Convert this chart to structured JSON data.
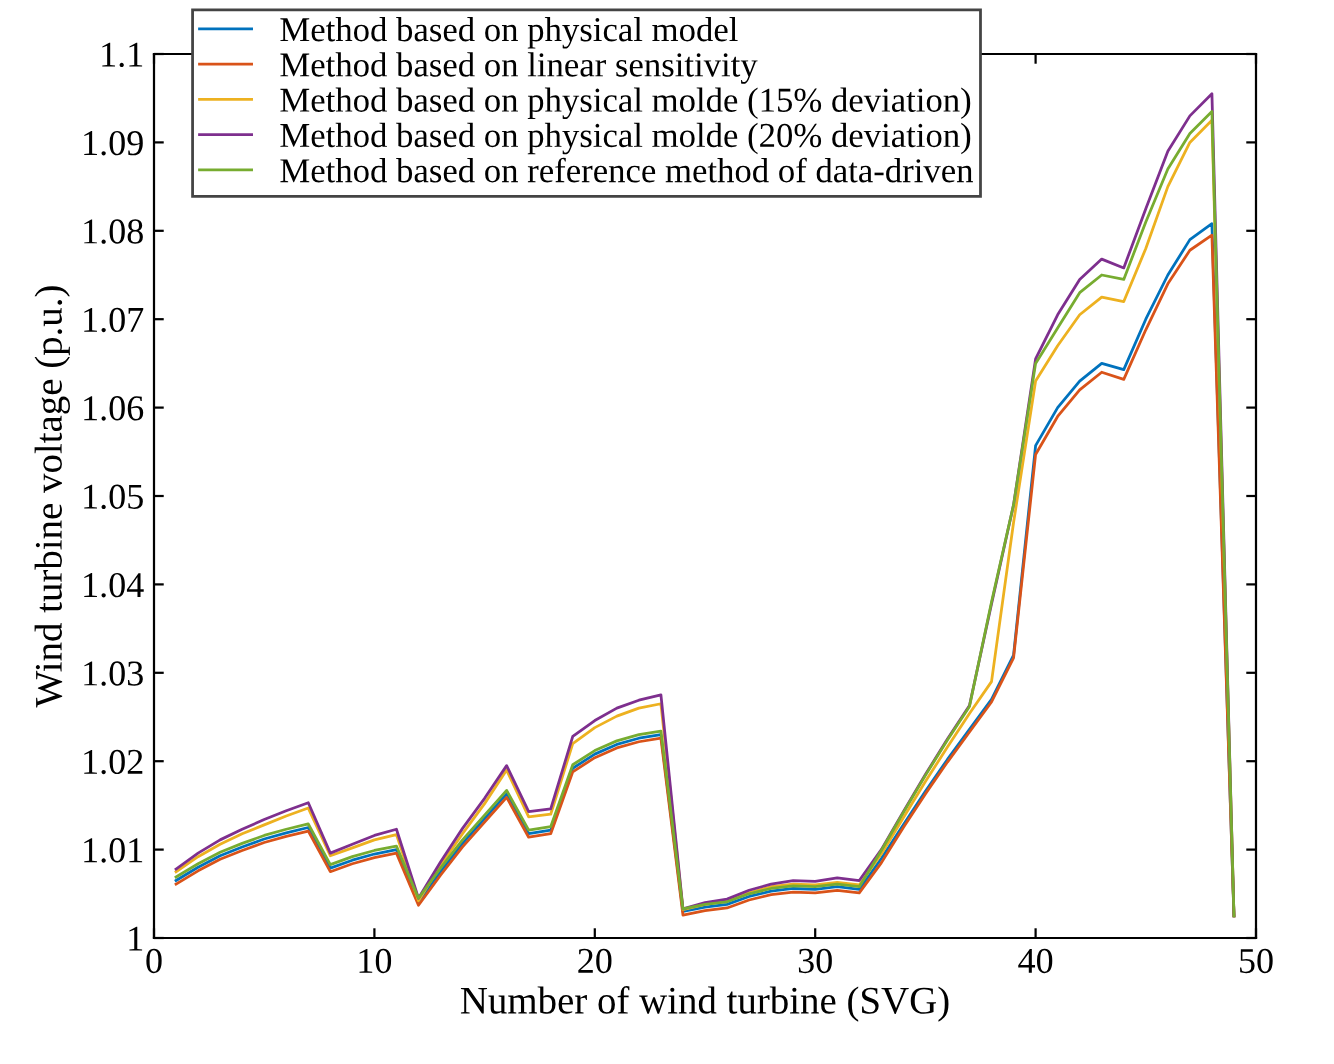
{
  "chart_data": {
    "type": "line",
    "xlabel": "Number of wind turbine (SVG)",
    "ylabel": "Wind turbine voltage (p.u.)",
    "x": [
      1,
      2,
      3,
      4,
      5,
      6,
      7,
      8,
      9,
      10,
      11,
      12,
      13,
      14,
      15,
      16,
      17,
      18,
      19,
      20,
      21,
      22,
      23,
      24,
      25,
      26,
      27,
      28,
      29,
      30,
      31,
      32,
      33,
      34,
      35,
      36,
      37,
      38,
      39,
      40,
      41,
      42,
      43,
      44,
      45,
      46,
      47,
      48,
      49
    ],
    "series": [
      {
        "name": "Method based on physical model",
        "color": "#0072bd",
        "values": [
          1.0065,
          1.008,
          1.0093,
          1.0103,
          1.0112,
          1.0119,
          1.0125,
          1.0079,
          1.0088,
          1.0095,
          1.01,
          1.0041,
          1.0075,
          1.0107,
          1.0135,
          1.0163,
          1.0118,
          1.0122,
          1.0192,
          1.0208,
          1.0219,
          1.0226,
          1.023,
          1.003,
          1.0035,
          1.0038,
          1.0047,
          1.0053,
          1.0056,
          1.0055,
          1.0058,
          1.0055,
          1.009,
          1.0128,
          1.0166,
          1.0202,
          1.0236,
          1.027,
          1.032,
          1.0557,
          1.06,
          1.063,
          1.065,
          1.0643,
          1.07,
          1.075,
          1.079,
          1.0808,
          1.0025
        ]
      },
      {
        "name": "Method based on linear sensitivity",
        "color": "#d95319",
        "values": [
          1.0061,
          1.0076,
          1.0089,
          1.0099,
          1.0108,
          1.0115,
          1.0121,
          1.0075,
          1.0084,
          1.0091,
          1.0096,
          1.0037,
          1.0071,
          1.0103,
          1.0131,
          1.0159,
          1.0114,
          1.0118,
          1.0188,
          1.0204,
          1.0215,
          1.0222,
          1.0226,
          1.0026,
          1.0031,
          1.0034,
          1.0043,
          1.0049,
          1.0052,
          1.0051,
          1.0054,
          1.0051,
          1.0085,
          1.0125,
          1.0163,
          1.0199,
          1.0233,
          1.0267,
          1.0317,
          1.0547,
          1.059,
          1.062,
          1.064,
          1.0632,
          1.0688,
          1.074,
          1.0778,
          1.0795,
          1.0025
        ]
      },
      {
        "name": "Method based on physical molde (15% deviation)",
        "color": "#edb120",
        "values": [
          1.0075,
          1.0092,
          1.0106,
          1.0118,
          1.0128,
          1.0138,
          1.0147,
          1.0093,
          1.0102,
          1.0111,
          1.0117,
          1.0042,
          1.0082,
          1.0118,
          1.0152,
          1.019,
          1.0137,
          1.014,
          1.022,
          1.0238,
          1.0251,
          1.026,
          1.0265,
          1.0032,
          1.0038,
          1.0042,
          1.0051,
          1.0058,
          1.0061,
          1.006,
          1.0063,
          1.006,
          1.0095,
          1.0136,
          1.0177,
          1.0216,
          1.0254,
          1.029,
          1.047,
          1.063,
          1.067,
          1.0705,
          1.0725,
          1.072,
          1.078,
          1.085,
          1.09,
          1.0925,
          1.0025
        ]
      },
      {
        "name": "Method based on physical molde (20% deviation)",
        "color": "#7e2f8e",
        "values": [
          1.0078,
          1.0096,
          1.0111,
          1.0123,
          1.0134,
          1.0144,
          1.0153,
          1.0096,
          1.0106,
          1.0116,
          1.0123,
          1.0045,
          1.0086,
          1.0124,
          1.0158,
          1.0195,
          1.0143,
          1.0146,
          1.0228,
          1.0246,
          1.026,
          1.0269,
          1.0275,
          1.0033,
          1.004,
          1.0044,
          1.0054,
          1.0061,
          1.0065,
          1.0064,
          1.0068,
          1.0065,
          1.01,
          1.0143,
          1.0185,
          1.0225,
          1.0263,
          1.0378,
          1.049,
          1.0655,
          1.0705,
          1.0745,
          1.0768,
          1.0758,
          1.0825,
          1.089,
          1.093,
          1.0955,
          1.0025
        ]
      },
      {
        "name": "Method based on reference method of data-driven",
        "color": "#77ac30",
        "values": [
          1.0069,
          1.0084,
          1.0097,
          1.0107,
          1.0116,
          1.0123,
          1.0129,
          1.0083,
          1.0092,
          1.0099,
          1.0104,
          1.0045,
          1.0079,
          1.0111,
          1.0139,
          1.0167,
          1.0122,
          1.0126,
          1.0196,
          1.0212,
          1.0223,
          1.023,
          1.0234,
          1.0033,
          1.0038,
          1.0041,
          1.005,
          1.0056,
          1.0059,
          1.0058,
          1.0061,
          1.0058,
          1.0099,
          1.0142,
          1.0184,
          1.0224,
          1.0262,
          1.038,
          1.049,
          1.065,
          1.069,
          1.073,
          1.075,
          1.0745,
          1.081,
          1.087,
          1.091,
          1.0935,
          1.0025
        ]
      }
    ],
    "xlim": [
      0,
      50
    ],
    "ylim": [
      1,
      1.1
    ],
    "xticks": [
      0,
      10,
      20,
      30,
      40,
      50
    ],
    "yticks": [
      1,
      1.01,
      1.02,
      1.03,
      1.04,
      1.05,
      1.06,
      1.07,
      1.08,
      1.09,
      1.1
    ],
    "grid": false,
    "legend": "top left",
    "marker": "none",
    "line_style": "solid"
  }
}
